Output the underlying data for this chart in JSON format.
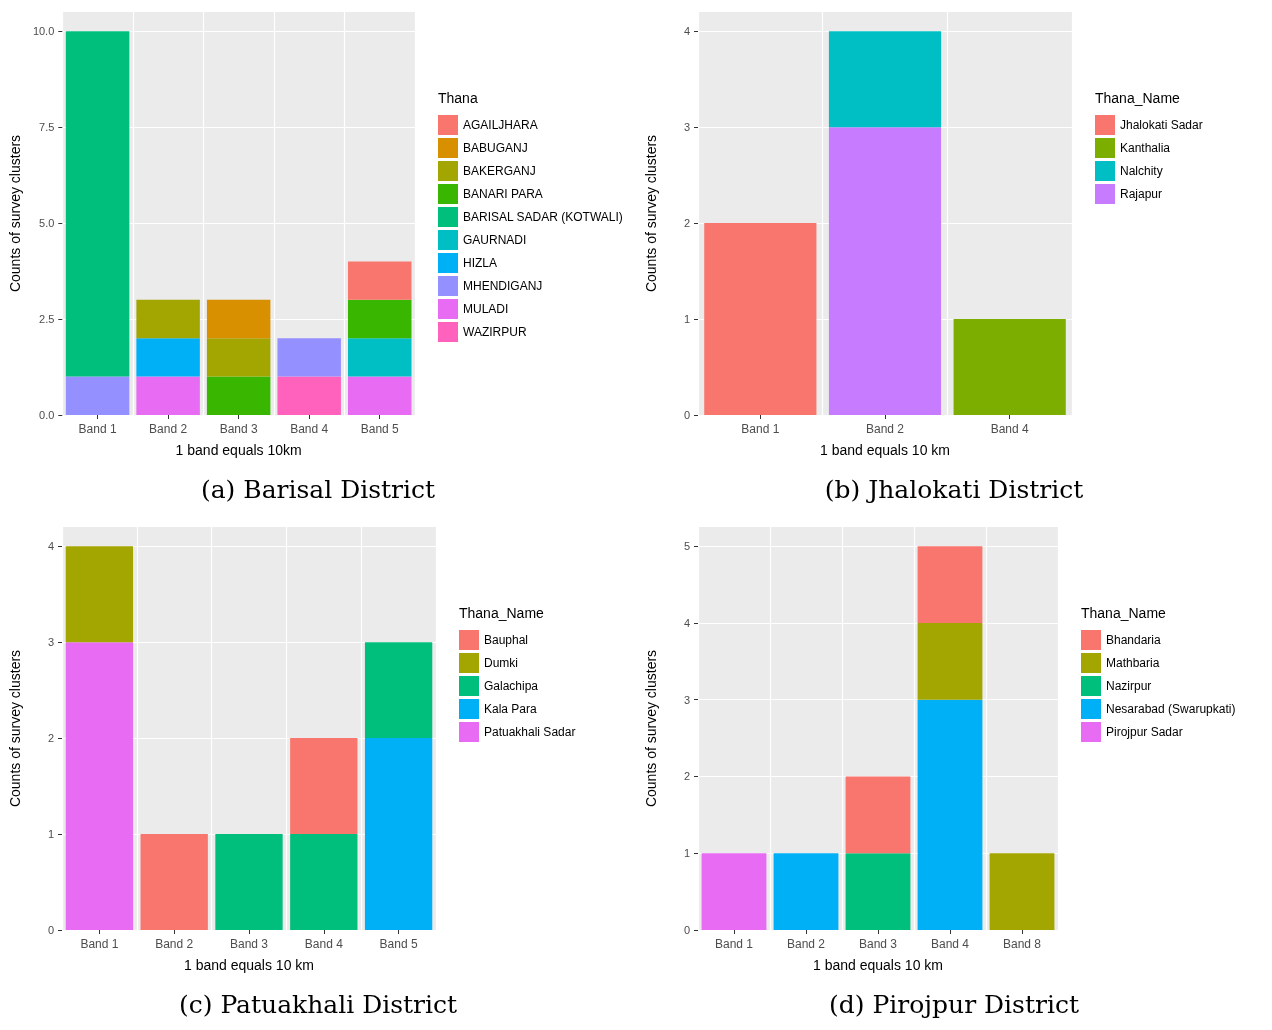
{
  "chart_data": [
    {
      "type": "bar",
      "title": "(a) Barisal District",
      "xlabel": "1 band equals 10km",
      "ylabel": "Counts of survey clusters",
      "legend_title": "Thana",
      "stacked": true,
      "grid": true,
      "legend": "right",
      "categories": [
        "Band 1",
        "Band 2",
        "Band 3",
        "Band 4",
        "Band 5"
      ],
      "ylim": [
        0,
        10.5
      ],
      "yticks": [
        {
          "value": 0,
          "label": "0.0"
        },
        {
          "value": 2.5,
          "label": "2.5"
        },
        {
          "value": 5,
          "label": "5.0"
        },
        {
          "value": 7.5,
          "label": "7.5"
        },
        {
          "value": 10,
          "label": "10.0"
        }
      ],
      "series": [
        {
          "name": "WAZIRPUR",
          "color": "#ff62bc",
          "values": [
            null,
            null,
            null,
            1,
            null
          ]
        },
        {
          "name": "MULADI",
          "color": "#e76bf3",
          "values": [
            null,
            1,
            null,
            null,
            1
          ]
        },
        {
          "name": "MHENDIGANJ",
          "color": "#9590ff",
          "values": [
            1,
            null,
            null,
            1,
            null
          ]
        },
        {
          "name": "HIZLA",
          "color": "#00b0f6",
          "values": [
            null,
            1,
            null,
            null,
            null
          ]
        },
        {
          "name": "GAURNADI",
          "color": "#00bfc4",
          "values": [
            null,
            null,
            null,
            null,
            1
          ]
        },
        {
          "name": "BARISAL SADAR (KOTWALI)",
          "color": "#00bf7d",
          "values": [
            9,
            null,
            null,
            null,
            null
          ]
        },
        {
          "name": "BANARI PARA",
          "color": "#39b600",
          "values": [
            null,
            null,
            1,
            null,
            1
          ]
        },
        {
          "name": "BAKERGANJ",
          "color": "#a3a500",
          "values": [
            null,
            1,
            1,
            null,
            null
          ]
        },
        {
          "name": "BABUGANJ",
          "color": "#d89000",
          "values": [
            null,
            null,
            1,
            null,
            null
          ]
        },
        {
          "name": "AGAILJHARA",
          "color": "#f8766d",
          "values": [
            null,
            null,
            null,
            null,
            1
          ]
        }
      ]
    },
    {
      "type": "bar",
      "title": "(b) Jhalokati District",
      "xlabel": "1 band equals 10 km",
      "ylabel": "Counts of survey clusters",
      "legend_title": "Thana_Name",
      "stacked": true,
      "grid": true,
      "legend": "right",
      "categories": [
        "Band 1",
        "Band 2",
        "Band 4"
      ],
      "ylim": [
        0,
        4.2
      ],
      "yticks": [
        0,
        1,
        2,
        3,
        4
      ],
      "series": [
        {
          "name": "Rajapur",
          "color": "#c77cff",
          "values": [
            null,
            3,
            null
          ]
        },
        {
          "name": "Nalchity",
          "color": "#00bfc4",
          "values": [
            null,
            1,
            null
          ]
        },
        {
          "name": "Kanthalia",
          "color": "#7cae00",
          "values": [
            null,
            null,
            1
          ]
        },
        {
          "name": "Jhalokati Sadar",
          "color": "#f8766d",
          "values": [
            2,
            null,
            null
          ]
        }
      ]
    },
    {
      "type": "bar",
      "title": "(c) Patuakhali District",
      "xlabel": "1 band equals 10 km",
      "ylabel": "Counts of survey clusters",
      "legend_title": "Thana_Name",
      "stacked": true,
      "grid": true,
      "legend": "right",
      "categories": [
        "Band 1",
        "Band 2",
        "Band 3",
        "Band 4",
        "Band 5"
      ],
      "ylim": [
        0,
        4.2
      ],
      "yticks": [
        0,
        1,
        2,
        3,
        4
      ],
      "series": [
        {
          "name": "Patuakhali Sadar",
          "color": "#e76bf3",
          "values": [
            3,
            null,
            null,
            null,
            null
          ]
        },
        {
          "name": "Kala Para",
          "color": "#00b0f6",
          "values": [
            null,
            null,
            null,
            null,
            2
          ]
        },
        {
          "name": "Galachipa",
          "color": "#00bf7d",
          "values": [
            null,
            null,
            1,
            1,
            1
          ]
        },
        {
          "name": "Dumki",
          "color": "#a3a500",
          "values": [
            1,
            null,
            null,
            null,
            null
          ]
        },
        {
          "name": "Bauphal",
          "color": "#f8766d",
          "values": [
            null,
            1,
            null,
            1,
            null
          ]
        }
      ]
    },
    {
      "type": "bar",
      "title": "(d) Pirojpur District",
      "xlabel": "1 band equals 10 km",
      "ylabel": "Counts of survey clusters",
      "legend_title": "Thana_Name",
      "stacked": true,
      "grid": true,
      "legend": "right",
      "categories": [
        "Band 1",
        "Band 2",
        "Band 3",
        "Band 4",
        "Band 8"
      ],
      "ylim": [
        0,
        5.25
      ],
      "yticks": [
        0,
        1,
        2,
        3,
        4,
        5
      ],
      "series": [
        {
          "name": "Pirojpur Sadar",
          "color": "#e76bf3",
          "values": [
            1,
            null,
            null,
            null,
            null
          ]
        },
        {
          "name": "Nesarabad (Swarupkati)",
          "color": "#00b0f6",
          "values": [
            null,
            1,
            null,
            3,
            null
          ]
        },
        {
          "name": "Nazirpur",
          "color": "#00bf7d",
          "values": [
            null,
            null,
            1,
            null,
            null
          ]
        },
        {
          "name": "Mathbaria",
          "color": "#a3a500",
          "values": [
            null,
            null,
            null,
            1,
            1
          ]
        },
        {
          "name": "Bhandaria",
          "color": "#f8766d",
          "values": [
            null,
            null,
            1,
            1,
            null
          ]
        }
      ]
    }
  ]
}
